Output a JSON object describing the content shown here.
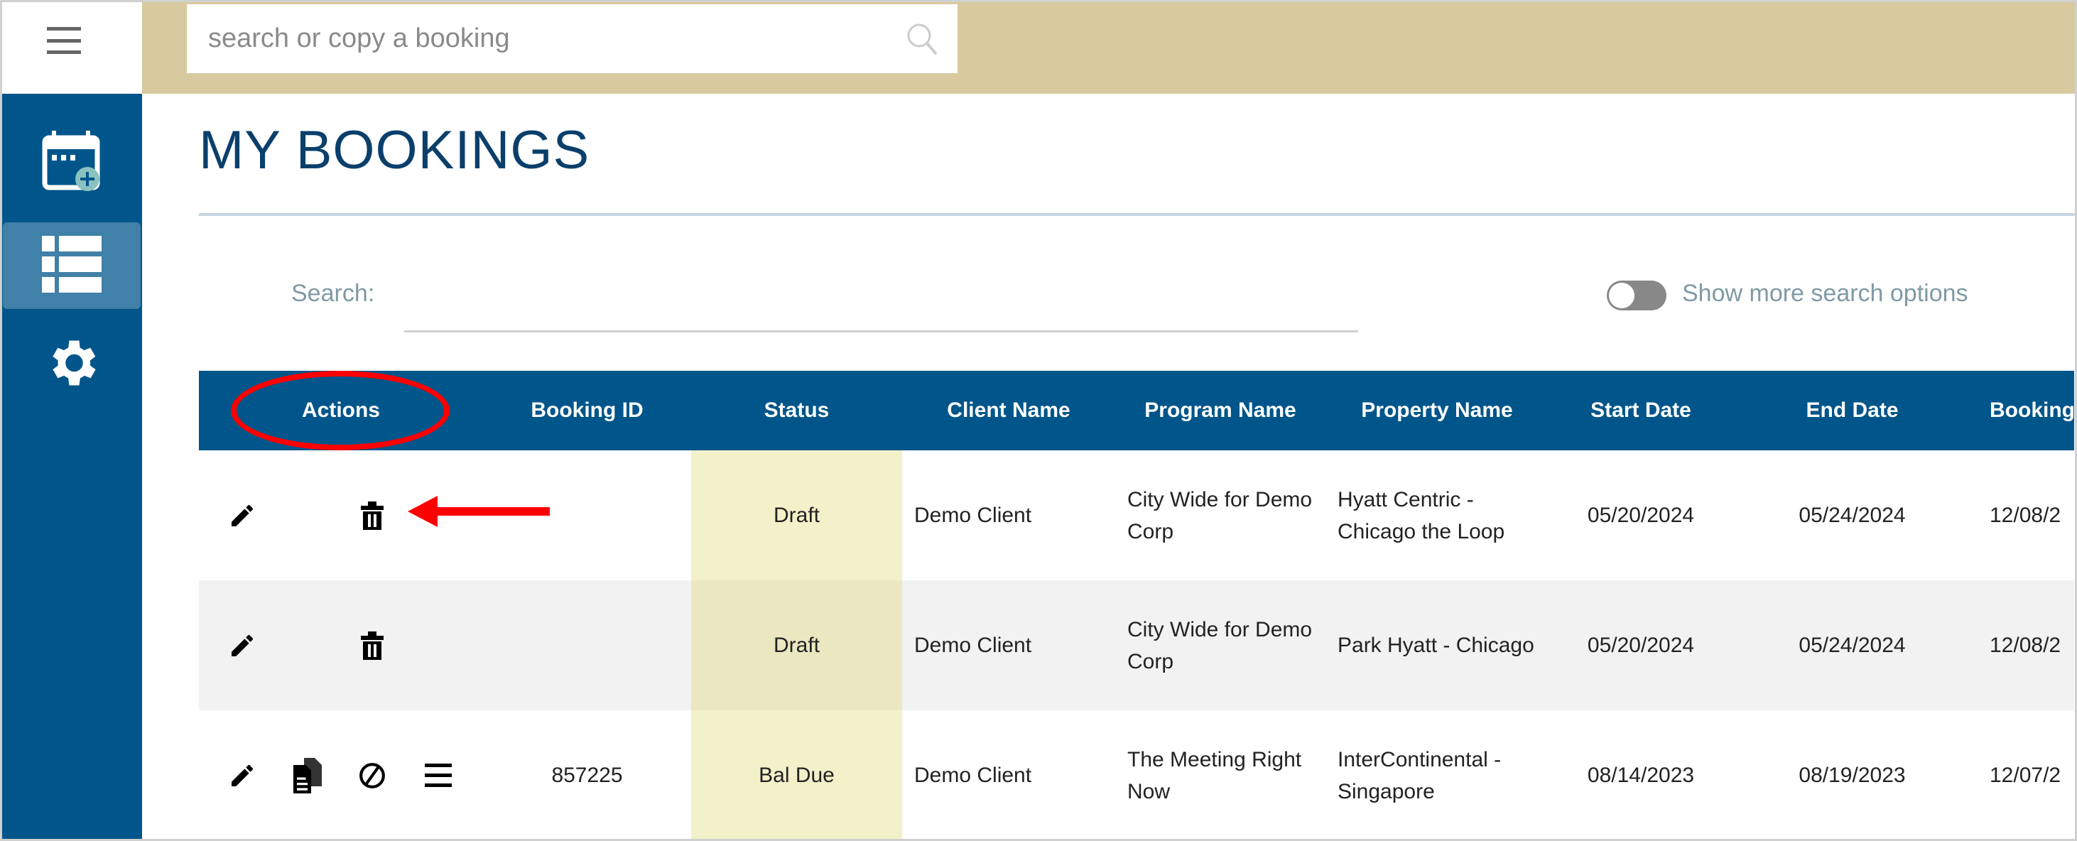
{
  "topbar": {
    "search_placeholder": "search or copy a booking"
  },
  "sidebar": {
    "items": [
      {
        "icon": "calendar-plus-icon",
        "active": false
      },
      {
        "icon": "list-icon",
        "active": true
      },
      {
        "icon": "gear-icon",
        "active": false
      }
    ]
  },
  "page": {
    "title": "MY BOOKINGS",
    "search_label": "Search:",
    "search_value": "",
    "toggle_label": "Show more search options",
    "toggle_on": false
  },
  "table": {
    "headers": [
      "Actions",
      "Booking ID",
      "Status",
      "Client Name",
      "Program Name",
      "Property Name",
      "Start Date",
      "End Date",
      "Booking"
    ],
    "rows": [
      {
        "actions": [
          "edit",
          "delete"
        ],
        "booking_id": "",
        "status": "Draft",
        "client": "Demo Client",
        "program": "City Wide for Demo Corp",
        "property": "Hyatt Centric - Chicago the Loop",
        "start": "05/20/2024",
        "end": "05/24/2024",
        "booking": "12/08/2"
      },
      {
        "actions": [
          "edit",
          "delete"
        ],
        "booking_id": "",
        "status": "Draft",
        "client": "Demo Client",
        "program": "City Wide for Demo Corp",
        "property": "Park Hyatt - Chicago",
        "start": "05/20/2024",
        "end": "05/24/2024",
        "booking": "12/08/2"
      },
      {
        "actions": [
          "edit",
          "copy",
          "cancel",
          "details"
        ],
        "booking_id": "857225",
        "status": "Bal Due",
        "client": "Demo Client",
        "program": "The Meeting Right Now",
        "property": "InterContinental - Singapore",
        "start": "08/14/2023",
        "end": "08/19/2023",
        "booking": "12/07/2"
      }
    ]
  },
  "colors": {
    "brand_blue": "#00558a",
    "topbar_tan": "#d8c99f",
    "status_highlight": "#f3f1c9",
    "annotation_red": "#ff0000"
  }
}
